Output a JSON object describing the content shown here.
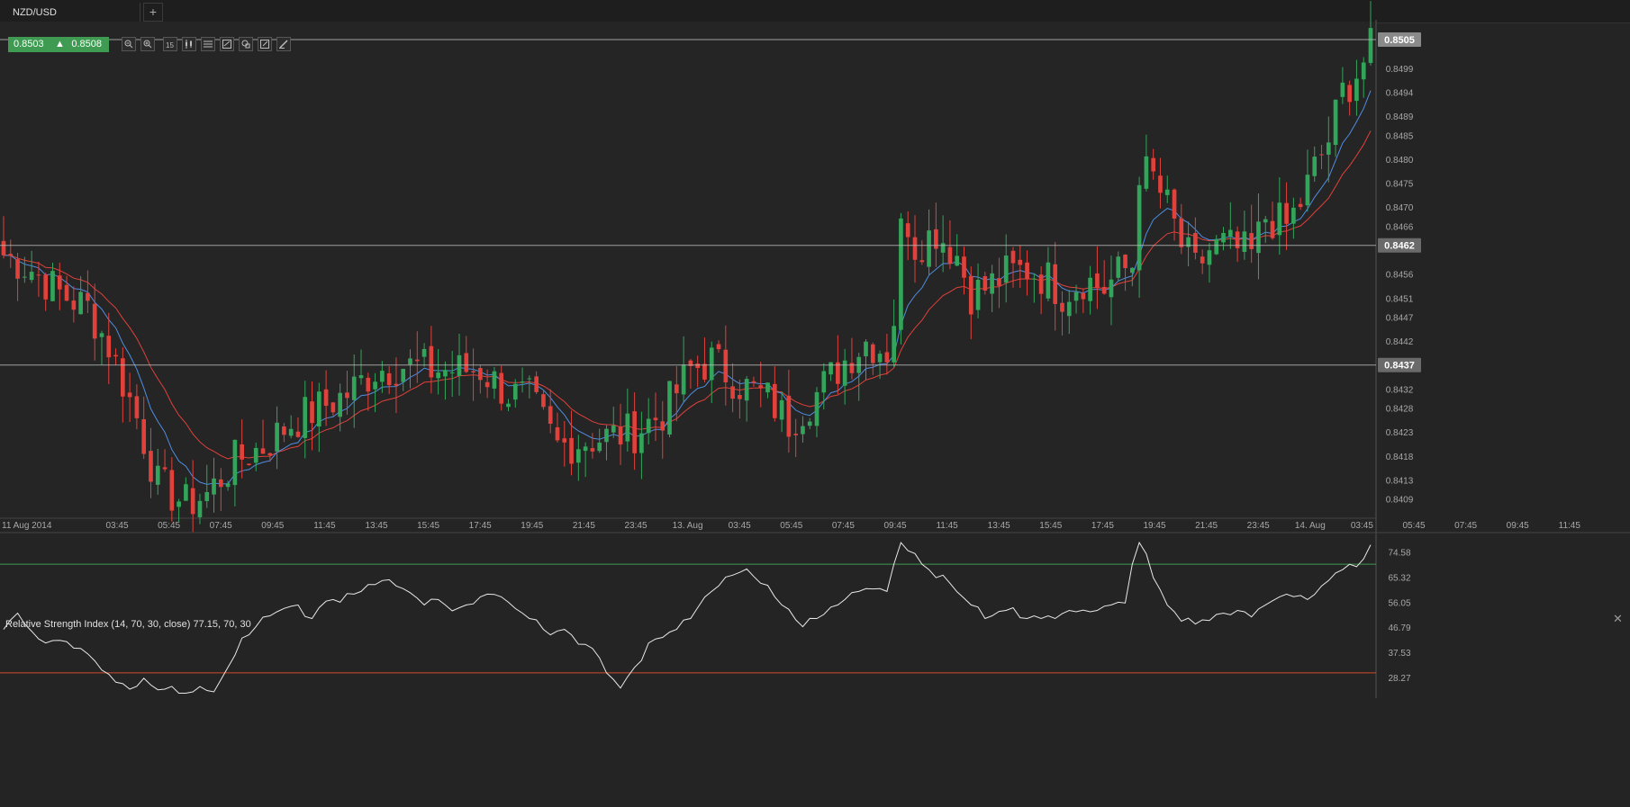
{
  "tab": {
    "symbol": "NZD/USD",
    "add_label": "+"
  },
  "quote": {
    "bid": "0.8503",
    "ask": "0.8508"
  },
  "toolbar": {
    "tools": [
      "zoom-in-icon",
      "zoom-out-icon",
      "timeframe-icon",
      "candles-icon",
      "indicators-icon",
      "draw-icon",
      "objects-icon",
      "edit-icon",
      "pen-icon"
    ]
  },
  "colors": {
    "up": "#33a55a",
    "down": "#e0413b",
    "ma_fast": "#4f8de0",
    "ma_slow": "#e0413b",
    "rsi_line": "#e8e8e8",
    "rsi_upper": "#3f9a52",
    "rsi_lower": "#d24a2a",
    "price_label": "#6a6a6a"
  },
  "chart_data": [
    {
      "type": "candlestick",
      "symbol": "NZD/USD",
      "ylim": [
        0.8405,
        0.8508
      ],
      "y_ticks": [
        "0.8499",
        "0.8494",
        "0.8489",
        "0.8485",
        "0.8480",
        "0.8475",
        "0.8470",
        "0.8466",
        "0.8456",
        "0.8451",
        "0.8447",
        "0.8442",
        "0.8432",
        "0.8428",
        "0.8423",
        "0.8418",
        "0.8413",
        "0.8409"
      ],
      "x_ticks": [
        "11 Aug 2014",
        "03:45",
        "05:45",
        "07:45",
        "09:45",
        "11:45",
        "13:45",
        "15:45",
        "17:45",
        "19:45",
        "21:45",
        "23:45",
        "13. Aug",
        "03:45",
        "05:45",
        "07:45",
        "09:45",
        "11:45",
        "13:45",
        "15:45",
        "17:45",
        "19:45",
        "21:45",
        "23:45",
        "14. Aug",
        "03:45",
        "05:45",
        "07:45",
        "09:45",
        "11:45"
      ],
      "levels": [
        {
          "value": 0.8505,
          "label": "0.8505",
          "highlight": true
        },
        {
          "value": 0.8462,
          "label": "0.8462"
        },
        {
          "value": 0.8437,
          "label": "0.8437"
        }
      ],
      "close_path": [
        [
          0,
          0.846
        ],
        [
          4,
          0.8457
        ],
        [
          8,
          0.8452
        ],
        [
          12,
          0.8449
        ],
        [
          15,
          0.8441
        ],
        [
          19,
          0.8426
        ],
        [
          22,
          0.8412
        ],
        [
          26,
          0.8408
        ],
        [
          29,
          0.841
        ],
        [
          33,
          0.8417
        ],
        [
          37,
          0.842
        ],
        [
          41,
          0.8425
        ],
        [
          45,
          0.8428
        ],
        [
          49,
          0.8431
        ],
        [
          53,
          0.8436
        ],
        [
          57,
          0.8437
        ],
        [
          61,
          0.8436
        ],
        [
          64,
          0.8436
        ],
        [
          68,
          0.8436
        ],
        [
          72,
          0.8431
        ],
        [
          75,
          0.843
        ],
        [
          79,
          0.842
        ],
        [
          82,
          0.8421
        ],
        [
          86,
          0.8422
        ],
        [
          90,
          0.8423
        ],
        [
          94,
          0.8427
        ],
        [
          98,
          0.8436
        ],
        [
          101,
          0.8438
        ],
        [
          105,
          0.8433
        ],
        [
          109,
          0.843
        ],
        [
          112,
          0.8425
        ],
        [
          116,
          0.8431
        ],
        [
          120,
          0.8438
        ],
        [
          123,
          0.8442
        ],
        [
          126,
          0.844
        ],
        [
          127,
          0.8447
        ],
        [
          128,
          0.8465
        ],
        [
          129,
          0.8467
        ],
        [
          130,
          0.8462
        ],
        [
          133,
          0.8465
        ],
        [
          136,
          0.846
        ],
        [
          138,
          0.8452
        ],
        [
          140,
          0.8453
        ],
        [
          143,
          0.8456
        ],
        [
          146,
          0.8457
        ],
        [
          149,
          0.8455
        ],
        [
          151,
          0.8452
        ],
        [
          154,
          0.8455
        ],
        [
          157,
          0.8453
        ],
        [
          159,
          0.8456
        ],
        [
          161,
          0.8458
        ],
        [
          162,
          0.8478
        ],
        [
          164,
          0.8476
        ],
        [
          166,
          0.847
        ],
        [
          168,
          0.8462
        ],
        [
          170,
          0.8457
        ],
        [
          172,
          0.8461
        ],
        [
          174,
          0.8462
        ],
        [
          176,
          0.8461
        ],
        [
          178,
          0.846
        ],
        [
          180,
          0.8468
        ],
        [
          183,
          0.8466
        ],
        [
          185,
          0.8471
        ],
        [
          187,
          0.8478
        ],
        [
          189,
          0.8484
        ],
        [
          191,
          0.8494
        ],
        [
          193,
          0.8498
        ],
        [
          195,
          0.8503
        ]
      ],
      "n_candles": 196
    },
    {
      "type": "line",
      "title": "Relative Strength Index (14, 70, 30, close) 77.15, 70, 30",
      "ylim": [
        22,
        81
      ],
      "y_ticks": [
        "74.58",
        "65.32",
        "56.05",
        "46.79",
        "37.53",
        "28.27"
      ],
      "levels": [
        70,
        30
      ],
      "rsi_path": [
        [
          0,
          46
        ],
        [
          2,
          52
        ],
        [
          4,
          44
        ],
        [
          6,
          41
        ],
        [
          8,
          42
        ],
        [
          10,
          41
        ],
        [
          12,
          37
        ],
        [
          14,
          31
        ],
        [
          16,
          28
        ],
        [
          18,
          24
        ],
        [
          20,
          28
        ],
        [
          22,
          23
        ],
        [
          24,
          25
        ],
        [
          26,
          22
        ],
        [
          28,
          24
        ],
        [
          30,
          23
        ],
        [
          32,
          32
        ],
        [
          34,
          41
        ],
        [
          36,
          47
        ],
        [
          38,
          51
        ],
        [
          40,
          54
        ],
        [
          42,
          55
        ],
        [
          44,
          50
        ],
        [
          46,
          58
        ],
        [
          48,
          56
        ],
        [
          50,
          59
        ],
        [
          52,
          61
        ],
        [
          54,
          64
        ],
        [
          56,
          62
        ],
        [
          58,
          60
        ],
        [
          60,
          55
        ],
        [
          62,
          57
        ],
        [
          64,
          53
        ],
        [
          66,
          55
        ],
        [
          68,
          58
        ],
        [
          70,
          60
        ],
        [
          72,
          56
        ],
        [
          74,
          52
        ],
        [
          76,
          48
        ],
        [
          78,
          44
        ],
        [
          80,
          46
        ],
        [
          82,
          42
        ],
        [
          84,
          39
        ],
        [
          86,
          30
        ],
        [
          88,
          25
        ],
        [
          90,
          32
        ],
        [
          92,
          41
        ],
        [
          94,
          44
        ],
        [
          96,
          46
        ],
        [
          98,
          50
        ],
        [
          100,
          58
        ],
        [
          102,
          62
        ],
        [
          104,
          66
        ],
        [
          106,
          68
        ],
        [
          108,
          63
        ],
        [
          110,
          58
        ],
        [
          112,
          52
        ],
        [
          114,
          47
        ],
        [
          116,
          50
        ],
        [
          118,
          53
        ],
        [
          120,
          57
        ],
        [
          122,
          60
        ],
        [
          124,
          62
        ],
        [
          126,
          60
        ],
        [
          127,
          70
        ],
        [
          128,
          78
        ],
        [
          130,
          72
        ],
        [
          132,
          68
        ],
        [
          134,
          66
        ],
        [
          136,
          60
        ],
        [
          138,
          55
        ],
        [
          140,
          50
        ],
        [
          142,
          52
        ],
        [
          144,
          54
        ],
        [
          146,
          50
        ],
        [
          148,
          52
        ],
        [
          150,
          50
        ],
        [
          152,
          53
        ],
        [
          154,
          52
        ],
        [
          156,
          53
        ],
        [
          158,
          55
        ],
        [
          160,
          57
        ],
        [
          161,
          70
        ],
        [
          162,
          78
        ],
        [
          163,
          72
        ],
        [
          164,
          65
        ],
        [
          166,
          56
        ],
        [
          168,
          49
        ],
        [
          170,
          48
        ],
        [
          172,
          51
        ],
        [
          174,
          52
        ],
        [
          176,
          53
        ],
        [
          178,
          52
        ],
        [
          180,
          55
        ],
        [
          182,
          58
        ],
        [
          184,
          60
        ],
        [
          186,
          57
        ],
        [
          188,
          62
        ],
        [
          190,
          66
        ],
        [
          192,
          70
        ],
        [
          194,
          72
        ],
        [
          195,
          77.15
        ]
      ],
      "n_points": 196
    }
  ]
}
